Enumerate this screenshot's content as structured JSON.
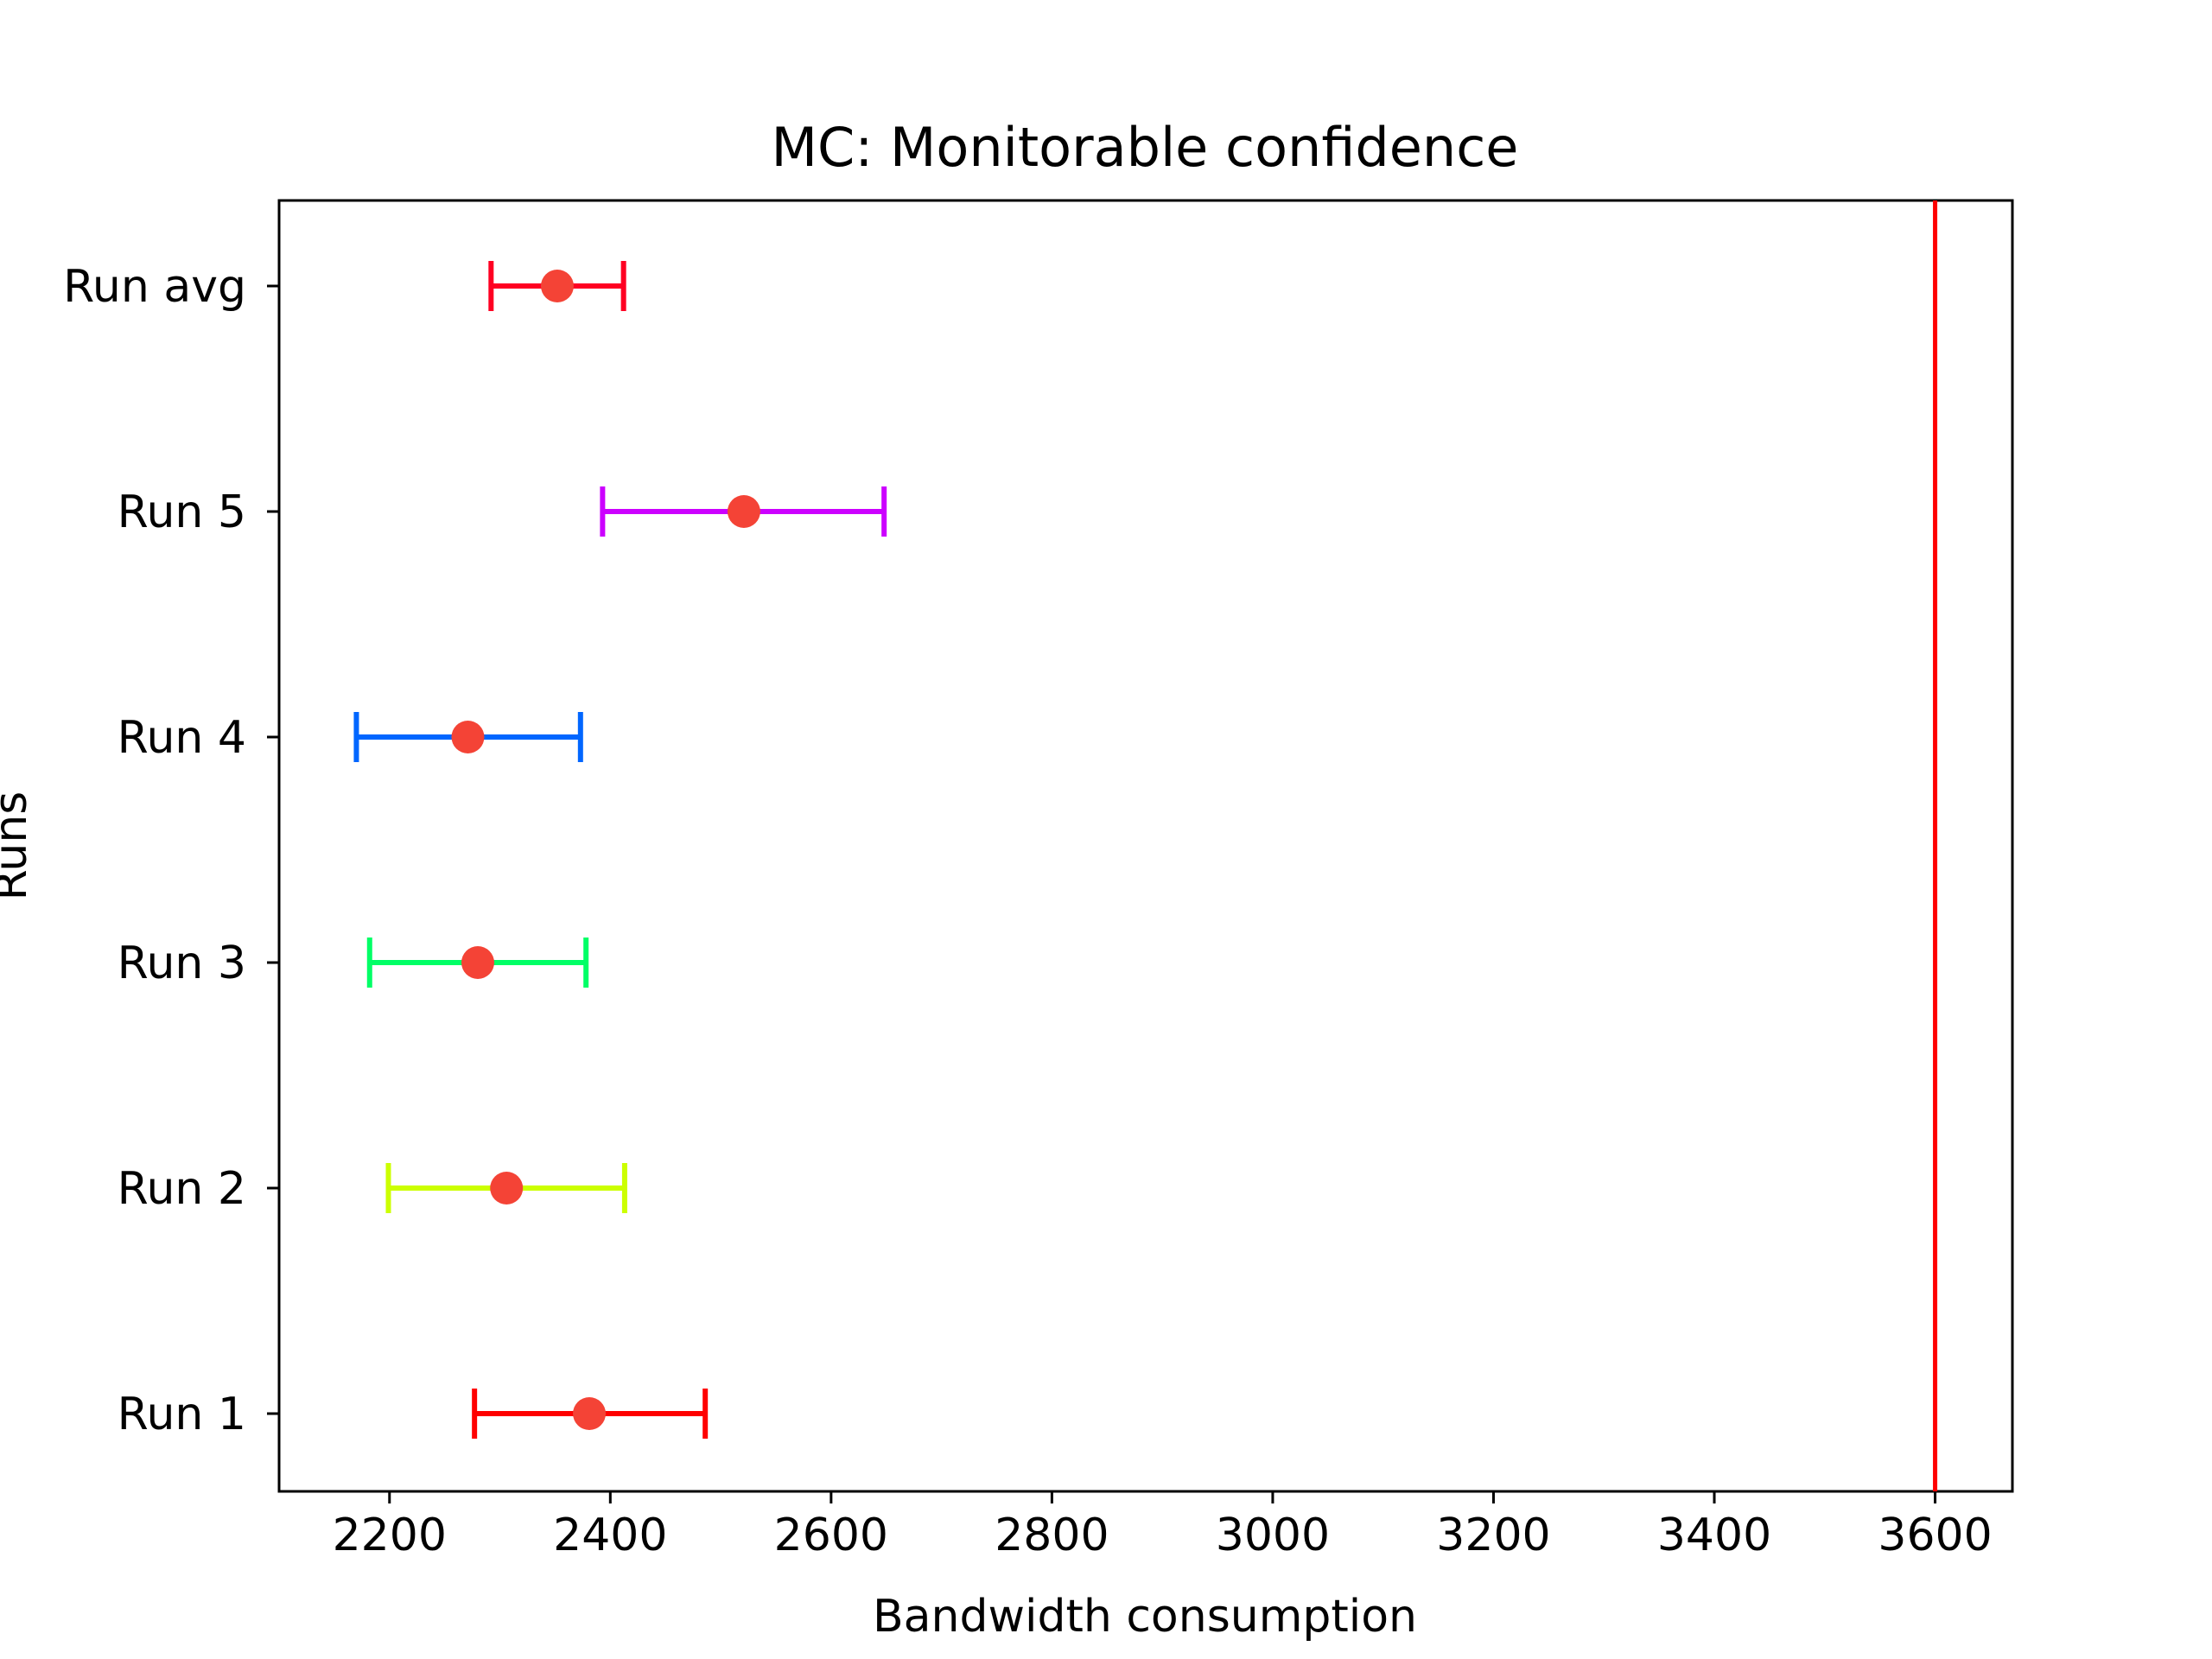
{
  "chart_data": {
    "type": "errorbar",
    "title": "MC: Monitorable confidence",
    "xlabel": "Bandwidth consumption",
    "ylabel": "Runs",
    "xlim": [
      2100,
      3670
    ],
    "x_ticks": [
      2200,
      2400,
      2600,
      2800,
      3000,
      3200,
      3400,
      3600
    ],
    "marker_color": "#f44336",
    "reference_line": {
      "x": 3600,
      "color": "#ff0000"
    },
    "rows": [
      {
        "label": "Run 1",
        "mean": 2381,
        "low": 2277,
        "high": 2486,
        "color": "#ff0000"
      },
      {
        "label": "Run 2",
        "mean": 2306,
        "low": 2199,
        "high": 2413,
        "color": "#ccff00"
      },
      {
        "label": "Run 3",
        "mean": 2280,
        "low": 2182,
        "high": 2378,
        "color": "#00ff66"
      },
      {
        "label": "Run 4",
        "mean": 2271,
        "low": 2170,
        "high": 2373,
        "color": "#0066ff"
      },
      {
        "label": "Run 5",
        "mean": 2521,
        "low": 2393,
        "high": 2648,
        "color": "#cc00ff"
      },
      {
        "label": "Run avg",
        "mean": 2352,
        "low": 2292,
        "high": 2412,
        "color": "#ff0022"
      }
    ]
  }
}
